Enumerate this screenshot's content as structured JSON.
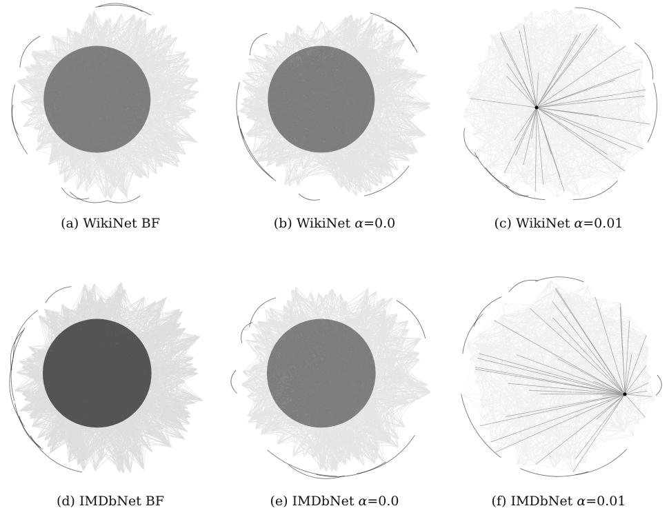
{
  "figure": {
    "panels": [
      {
        "id": "a",
        "label": "(a)",
        "name": "WikiNet",
        "method": "BF",
        "alpha": null,
        "density": "dense"
      },
      {
        "id": "b",
        "label": "(b)",
        "name": "WikiNet",
        "method": "",
        "alpha": "=0.0",
        "density": "dense"
      },
      {
        "id": "c",
        "label": "(c)",
        "name": "WikiNet",
        "method": "",
        "alpha": "=0.01",
        "density": "sparse",
        "hub": "center-left"
      },
      {
        "id": "d",
        "label": "(d)",
        "name": "IMDbNet",
        "method": "BF",
        "alpha": null,
        "density": "very-dense"
      },
      {
        "id": "e",
        "label": "(e)",
        "name": "IMDbNet",
        "method": "",
        "alpha": "=0.0",
        "density": "dense"
      },
      {
        "id": "f",
        "label": "(f)",
        "name": "IMDbNet",
        "method": "",
        "alpha": "=0.01",
        "density": "sparse",
        "hub": "right"
      }
    ],
    "alpha_symbol": "α",
    "ink_color": "#000000",
    "background_color": "#ffffff"
  }
}
